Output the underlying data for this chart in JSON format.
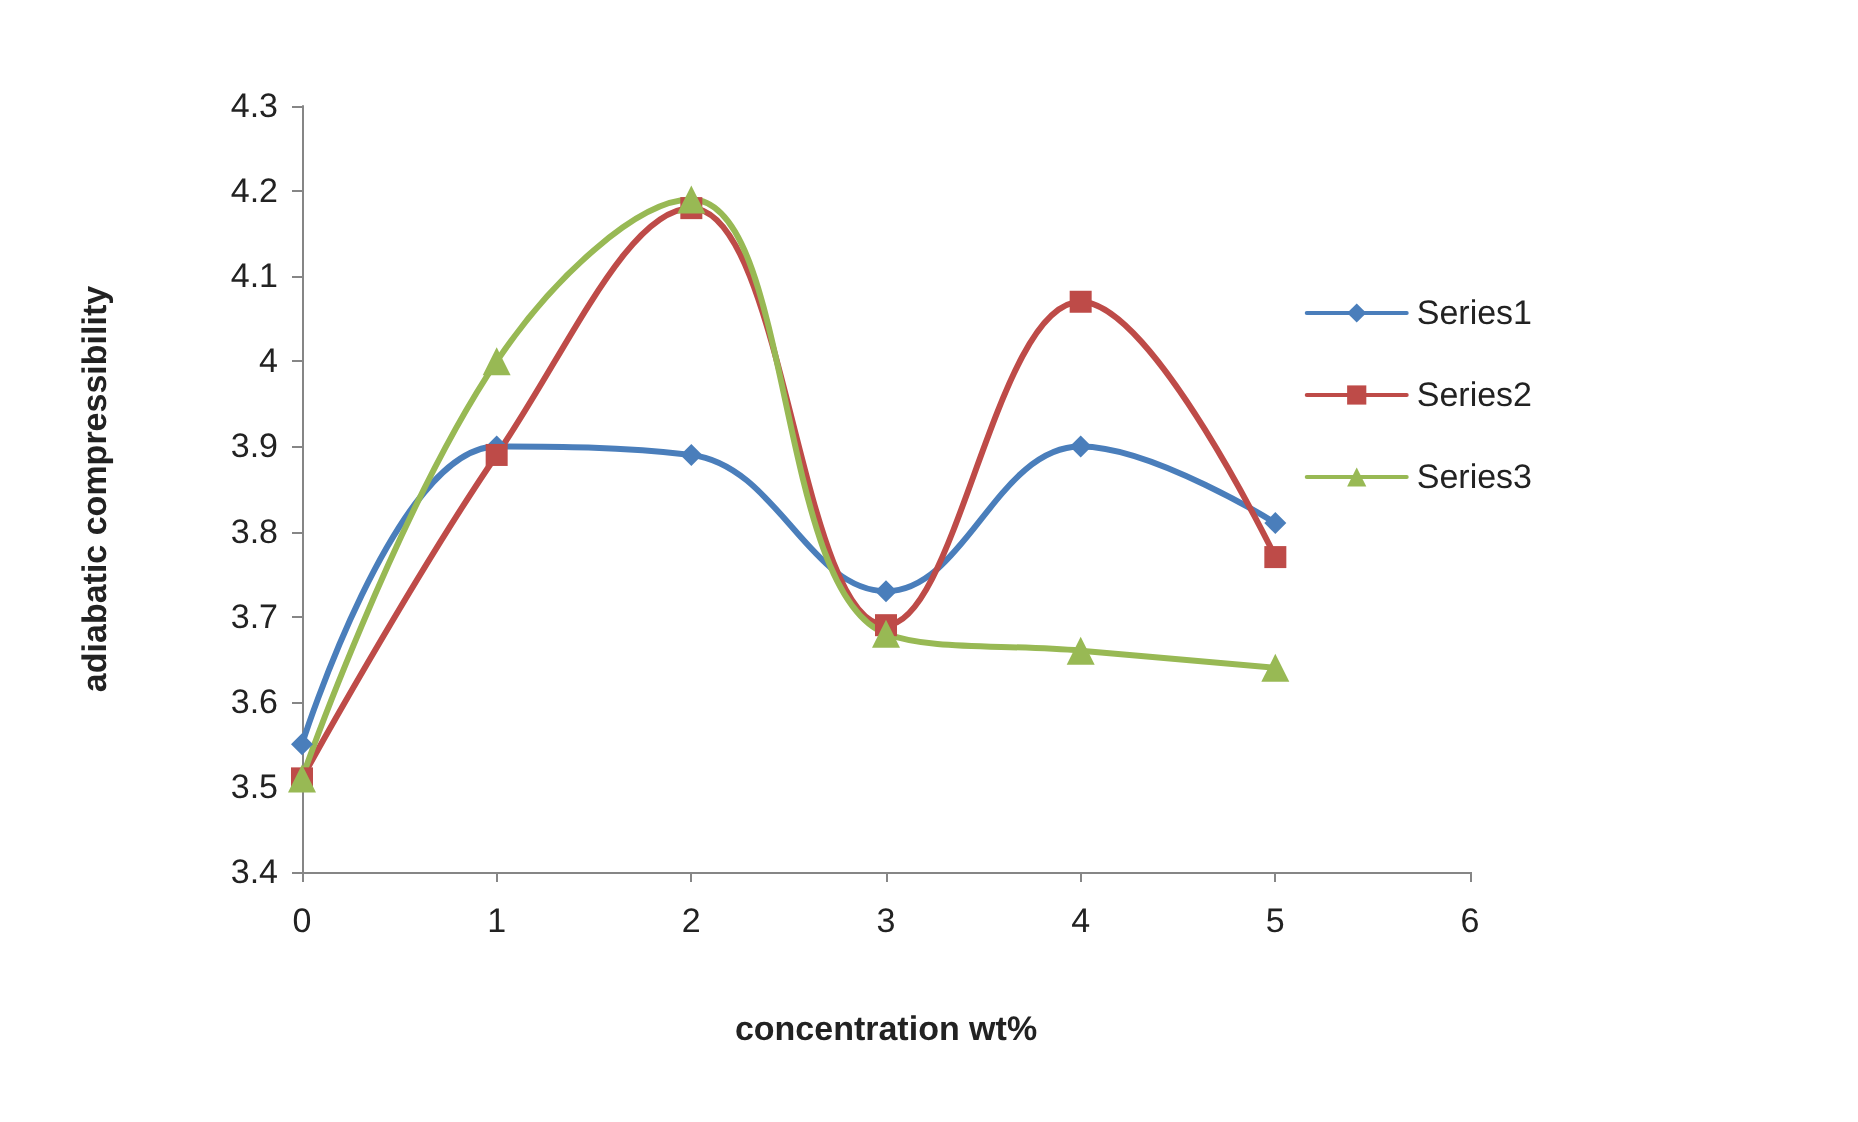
{
  "chart_data": {
    "type": "line",
    "xlabel": "concentration wt%",
    "ylabel": "adiabatic compressibility",
    "x": [
      0,
      1,
      2,
      3,
      4,
      5
    ],
    "xlim": [
      0,
      6
    ],
    "xticks": [
      0,
      1,
      2,
      3,
      4,
      5,
      6
    ],
    "ylim": [
      3.4,
      4.3
    ],
    "yticks": [
      {
        "value": 3.4,
        "label": "3.4"
      },
      {
        "value": 3.5,
        "label": "3.5"
      },
      {
        "value": 3.6,
        "label": "3.6"
      },
      {
        "value": 3.7,
        "label": "3.7"
      },
      {
        "value": 3.8,
        "label": "3.8"
      },
      {
        "value": 3.9,
        "label": "3.9"
      },
      {
        "value": 4.0,
        "label": "4"
      },
      {
        "value": 4.1,
        "label": "4.1"
      },
      {
        "value": 4.2,
        "label": "4.2"
      },
      {
        "value": 4.3,
        "label": "4.3"
      }
    ],
    "grid": false,
    "legend": "right",
    "line_style": "solid",
    "series": [
      {
        "name": "Series1",
        "color": "#4a7ebb",
        "marker": "diamond",
        "values": [
          3.55,
          3.9,
          3.89,
          3.73,
          3.9,
          3.81
        ]
      },
      {
        "name": "Series2",
        "color": "#be4b48",
        "marker": "square",
        "values": [
          3.51,
          3.89,
          4.18,
          3.69,
          4.07,
          3.77
        ]
      },
      {
        "name": "Series3",
        "color": "#98b954",
        "marker": "triangle",
        "values": [
          3.51,
          4.0,
          4.19,
          3.68,
          3.66,
          3.64
        ]
      }
    ]
  }
}
